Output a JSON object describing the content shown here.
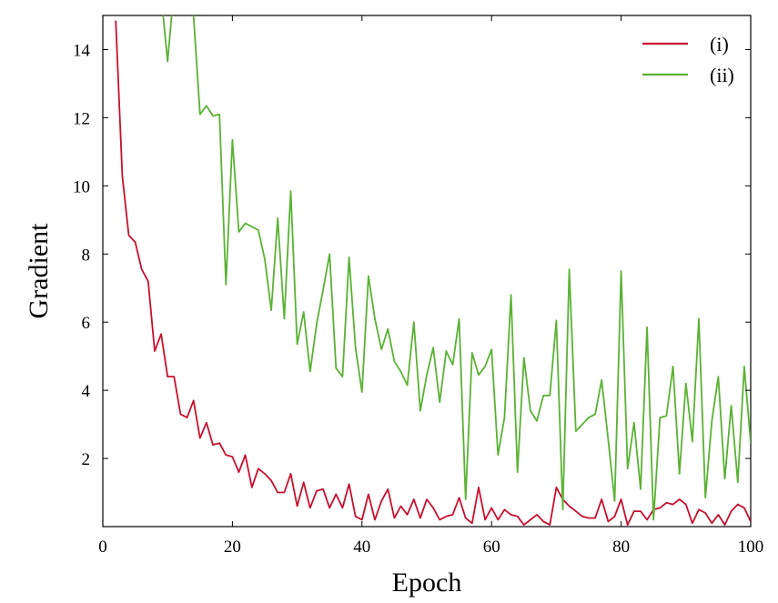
{
  "chart_data": {
    "type": "line",
    "title": "",
    "xlabel": "Epoch",
    "ylabel": "Gradient",
    "xlim": [
      0,
      100
    ],
    "ylim": [
      0,
      15
    ],
    "xticks": [
      0,
      20,
      40,
      60,
      80,
      100
    ],
    "yticks": [
      2,
      4,
      6,
      8,
      10,
      12,
      14
    ],
    "grid": false,
    "legend": "top-right",
    "series": [
      {
        "name": "(i)",
        "color": "#c8102e",
        "x": [
          2,
          3,
          4,
          5,
          6,
          7,
          8,
          9,
          10,
          11,
          12,
          13,
          14,
          15,
          16,
          17,
          18,
          19,
          20,
          21,
          22,
          23,
          24,
          25,
          26,
          27,
          28,
          29,
          30,
          31,
          32,
          33,
          34,
          35,
          36,
          37,
          38,
          39,
          40,
          41,
          42,
          43,
          44,
          45,
          46,
          47,
          48,
          49,
          50,
          51,
          52,
          53,
          54,
          55,
          56,
          57,
          58,
          59,
          60,
          61,
          62,
          63,
          64,
          65,
          66,
          67,
          68,
          69,
          70,
          71,
          72,
          73,
          74,
          75,
          76,
          77,
          78,
          79,
          80,
          81,
          82,
          83,
          84,
          85,
          86,
          87,
          88,
          89,
          90,
          91,
          92,
          93,
          94,
          95,
          96,
          97,
          98,
          99,
          100
        ],
        "y": [
          14.85,
          10.3,
          8.55,
          8.35,
          7.55,
          7.2,
          5.15,
          5.65,
          4.4,
          4.4,
          3.3,
          3.2,
          3.7,
          2.6,
          3.05,
          2.4,
          2.45,
          2.1,
          2.05,
          1.6,
          2.1,
          1.15,
          1.7,
          1.55,
          1.35,
          1.0,
          1.0,
          1.55,
          0.6,
          1.3,
          0.55,
          1.05,
          1.1,
          0.55,
          0.95,
          0.55,
          1.25,
          0.3,
          0.2,
          0.95,
          0.2,
          0.75,
          1.1,
          0.25,
          0.6,
          0.35,
          0.8,
          0.25,
          0.8,
          0.55,
          0.2,
          0.3,
          0.35,
          0.85,
          0.25,
          0.1,
          1.15,
          0.2,
          0.55,
          0.2,
          0.5,
          0.35,
          0.3,
          0.05,
          0.2,
          0.35,
          0.15,
          0.05,
          1.15,
          0.8,
          0.6,
          0.45,
          0.3,
          0.25,
          0.25,
          0.8,
          0.15,
          0.3,
          0.8,
          0.05,
          0.45,
          0.45,
          0.2,
          0.5,
          0.55,
          0.7,
          0.65,
          0.8,
          0.65,
          0.1,
          0.5,
          0.4,
          0.1,
          0.35,
          0.05,
          0.45,
          0.65,
          0.55,
          0.15
        ]
      },
      {
        "name": "(ii)",
        "color": "#5ab234",
        "x": [
          9,
          10,
          11,
          12,
          13,
          14,
          15,
          16,
          17,
          18,
          19,
          20,
          21,
          22,
          23,
          24,
          25,
          26,
          27,
          28,
          29,
          30,
          31,
          32,
          33,
          34,
          35,
          36,
          37,
          38,
          39,
          40,
          41,
          42,
          43,
          44,
          45,
          46,
          47,
          48,
          49,
          50,
          51,
          52,
          53,
          54,
          55,
          56,
          57,
          58,
          59,
          60,
          61,
          62,
          63,
          64,
          65,
          66,
          67,
          68,
          69,
          70,
          71,
          72,
          73,
          74,
          75,
          76,
          77,
          78,
          79,
          80,
          81,
          82,
          83,
          84,
          85,
          86,
          87,
          88,
          89,
          90,
          91,
          92,
          93,
          94,
          95,
          96,
          97,
          98,
          99,
          100
        ],
        "y": [
          15.6,
          13.65,
          15.8,
          16.0,
          16.5,
          15.0,
          12.1,
          12.35,
          12.05,
          12.1,
          7.1,
          11.35,
          8.65,
          8.9,
          8.8,
          8.7,
          7.85,
          6.35,
          9.05,
          6.1,
          9.85,
          5.35,
          6.3,
          4.55,
          5.95,
          6.95,
          8.0,
          4.65,
          4.4,
          7.9,
          5.25,
          3.95,
          7.35,
          6.1,
          5.2,
          5.8,
          4.85,
          4.55,
          4.15,
          6.0,
          3.4,
          4.45,
          5.25,
          3.65,
          5.15,
          4.75,
          6.1,
          0.8,
          5.1,
          4.45,
          4.7,
          5.2,
          2.1,
          3.2,
          6.8,
          1.6,
          4.95,
          3.4,
          3.1,
          3.85,
          3.85,
          6.05,
          0.5,
          7.55,
          2.8,
          3.0,
          3.2,
          3.3,
          4.3,
          2.55,
          0.75,
          7.5,
          1.7,
          3.05,
          1.1,
          5.85,
          0.2,
          3.2,
          3.25,
          4.7,
          1.55,
          4.2,
          2.5,
          6.1,
          0.85,
          3.1,
          4.4,
          1.4,
          3.55,
          1.3,
          4.7,
          2.45
        ]
      }
    ]
  }
}
